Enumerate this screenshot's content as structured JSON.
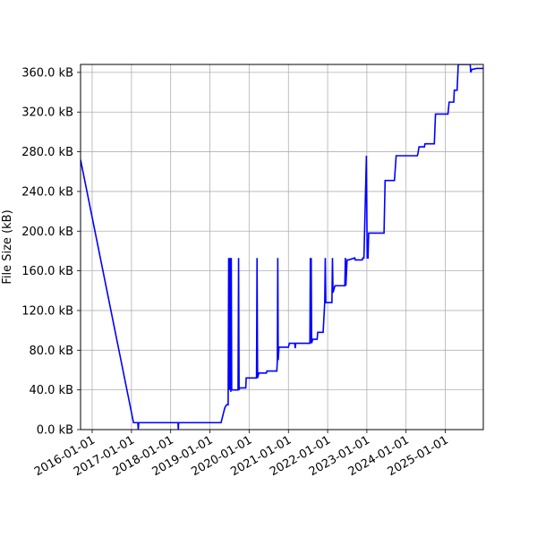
{
  "chart_data": {
    "type": "line",
    "title": "",
    "xlabel": "",
    "ylabel": "File Size (kB)",
    "grid": true,
    "legend": "none",
    "xlim": [
      "2015-09-15",
      "2025-12-20"
    ],
    "ylim": [
      0,
      368
    ],
    "x_ticks": [
      "2016-01-01",
      "2017-01-01",
      "2018-01-01",
      "2019-01-01",
      "2020-01-01",
      "2021-01-01",
      "2022-01-01",
      "2023-01-01",
      "2024-01-01",
      "2025-01-01"
    ],
    "y_ticks": [
      0,
      40,
      80,
      120,
      160,
      200,
      240,
      280,
      320,
      360
    ],
    "y_tick_labels": [
      "0.0 kB",
      "40.0 kB",
      "80.0 kB",
      "120.0 kB",
      "160.0 kB",
      "200.0 kB",
      "240.0 kB",
      "280.0 kB",
      "320.0 kB",
      "360.0 kB"
    ],
    "series_color": "#0000ff",
    "series": [
      {
        "values": [
          [
            "2015-09-15",
            272
          ],
          [
            "2017-01-20",
            7
          ],
          [
            "2017-03-01",
            7
          ],
          [
            "2017-03-05",
            0
          ],
          [
            "2017-03-10",
            7
          ],
          [
            "2018-03-10",
            7
          ],
          [
            "2018-03-13",
            0
          ],
          [
            "2018-03-16",
            7
          ],
          [
            "2019-04-15",
            7
          ],
          [
            "2019-05-20",
            22
          ],
          [
            "2019-06-05",
            25
          ],
          [
            "2019-06-20",
            25
          ],
          [
            "2019-06-25",
            173
          ],
          [
            "2019-06-29",
            40
          ],
          [
            "2019-07-03",
            173
          ],
          [
            "2019-07-07",
            40
          ],
          [
            "2019-07-11",
            173
          ],
          [
            "2019-07-15",
            38
          ],
          [
            "2019-07-19",
            173
          ],
          [
            "2019-07-23",
            40
          ],
          [
            "2019-09-20",
            40
          ],
          [
            "2019-09-25",
            173
          ],
          [
            "2019-09-30",
            40
          ],
          [
            "2019-10-05",
            42
          ],
          [
            "2019-12-01",
            42
          ],
          [
            "2019-12-05",
            52
          ],
          [
            "2020-03-10",
            52
          ],
          [
            "2020-03-15",
            173
          ],
          [
            "2020-03-20",
            52
          ],
          [
            "2020-04-01",
            57
          ],
          [
            "2020-06-10",
            57
          ],
          [
            "2020-06-15",
            59
          ],
          [
            "2020-09-15",
            59
          ],
          [
            "2020-09-20",
            70
          ],
          [
            "2020-09-24",
            173
          ],
          [
            "2020-09-28",
            70
          ],
          [
            "2020-10-05",
            83
          ],
          [
            "2021-01-01",
            83
          ],
          [
            "2021-01-10",
            87
          ],
          [
            "2021-03-01",
            87
          ],
          [
            "2021-03-05",
            82
          ],
          [
            "2021-03-10",
            87
          ],
          [
            "2021-07-20",
            87
          ],
          [
            "2021-07-24",
            173
          ],
          [
            "2021-07-28",
            87
          ],
          [
            "2021-08-01",
            173
          ],
          [
            "2021-08-05",
            87
          ],
          [
            "2021-08-15",
            91
          ],
          [
            "2021-09-25",
            91
          ],
          [
            "2021-10-01",
            98
          ],
          [
            "2021-11-20",
            98
          ],
          [
            "2021-11-25",
            108
          ],
          [
            "2021-12-05",
            128
          ],
          [
            "2021-12-10",
            173
          ],
          [
            "2021-12-15",
            128
          ],
          [
            "2022-02-10",
            128
          ],
          [
            "2022-02-15",
            173
          ],
          [
            "2022-02-20",
            138
          ],
          [
            "2022-03-10",
            145
          ],
          [
            "2022-06-10",
            145
          ],
          [
            "2022-06-15",
            173
          ],
          [
            "2022-06-20",
            145
          ],
          [
            "2022-07-01",
            171
          ],
          [
            "2022-07-15",
            171
          ],
          [
            "2022-09-10",
            173
          ],
          [
            "2022-09-15",
            171
          ],
          [
            "2022-11-20",
            171
          ],
          [
            "2022-11-25",
            173
          ],
          [
            "2022-12-05",
            173
          ],
          [
            "2022-12-28",
            276
          ],
          [
            "2023-01-04",
            173
          ],
          [
            "2023-01-12",
            173
          ],
          [
            "2023-01-18",
            198
          ],
          [
            "2023-06-10",
            198
          ],
          [
            "2023-06-20",
            251
          ],
          [
            "2023-09-15",
            251
          ],
          [
            "2023-10-01",
            276
          ],
          [
            "2024-04-15",
            276
          ],
          [
            "2024-04-20",
            278
          ],
          [
            "2024-05-01",
            285
          ],
          [
            "2024-06-20",
            285
          ],
          [
            "2024-06-25",
            288
          ],
          [
            "2024-09-20",
            288
          ],
          [
            "2024-10-01",
            318
          ],
          [
            "2025-01-25",
            318
          ],
          [
            "2025-02-05",
            330
          ],
          [
            "2025-03-20",
            330
          ],
          [
            "2025-03-25",
            342
          ],
          [
            "2025-04-20",
            342
          ],
          [
            "2025-05-01",
            368
          ],
          [
            "2025-07-01",
            368
          ],
          [
            "2025-08-20",
            368
          ],
          [
            "2025-08-25",
            360
          ],
          [
            "2025-09-05",
            363
          ],
          [
            "2025-10-20",
            364
          ],
          [
            "2025-12-20",
            364
          ]
        ]
      }
    ]
  }
}
